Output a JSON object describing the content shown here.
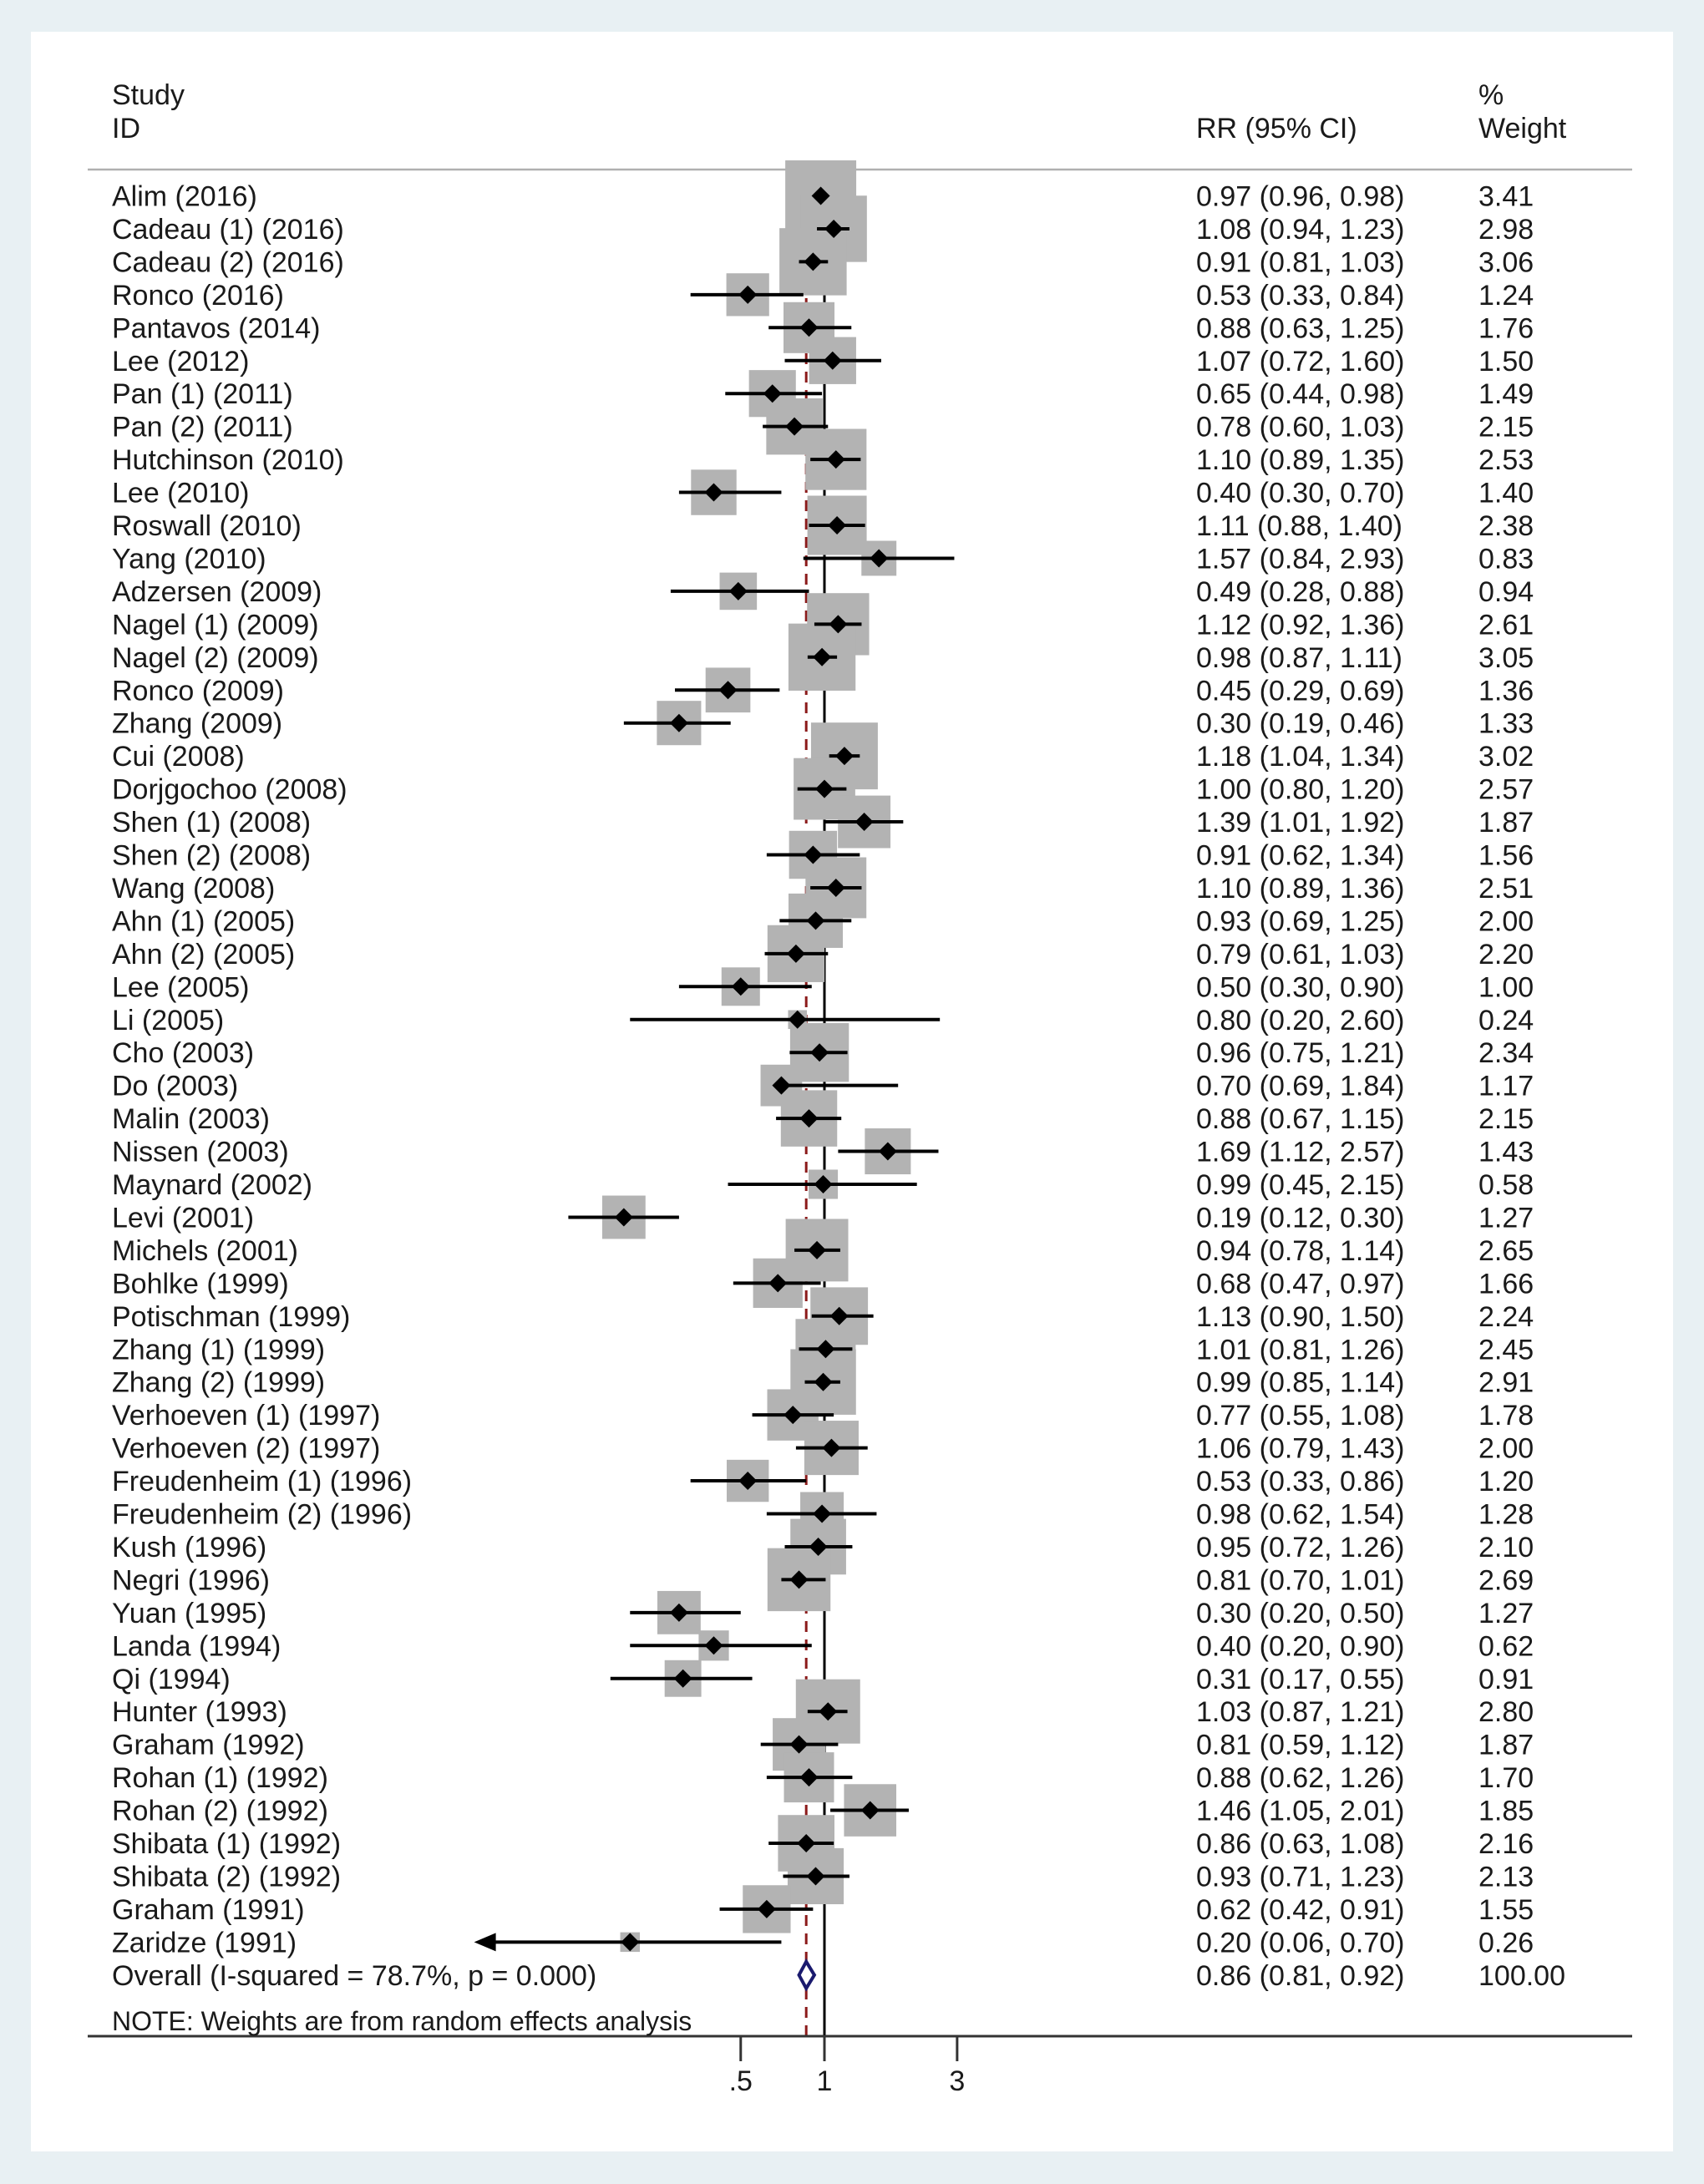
{
  "chart_data": {
    "type": "forest",
    "headers": {
      "study_line1": "Study",
      "study_line2": "ID",
      "effect": "RR (95% CI)",
      "weight_line1": "%",
      "weight_line2": "Weight"
    },
    "x_scale": "log",
    "xlim": [
      0.055,
      3.4
    ],
    "x_ticks": [
      {
        "value": 0.5,
        "label": ".5"
      },
      {
        "value": 1,
        "label": "1"
      },
      {
        "value": 3,
        "label": "3"
      }
    ],
    "null_line": 1,
    "pooled_line": 0.86,
    "studies": [
      {
        "label": "Alim (2016)",
        "rr": 0.97,
        "lo": 0.96,
        "hi": 0.98,
        "ci_text": "0.97 (0.96, 0.98)",
        "weight": 3.41,
        "weight_text": "3.41"
      },
      {
        "label": "Cadeau (1) (2016)",
        "rr": 1.08,
        "lo": 0.94,
        "hi": 1.23,
        "ci_text": "1.08 (0.94, 1.23)",
        "weight": 2.98,
        "weight_text": "2.98"
      },
      {
        "label": "Cadeau (2) (2016)",
        "rr": 0.91,
        "lo": 0.81,
        "hi": 1.03,
        "ci_text": "0.91 (0.81, 1.03)",
        "weight": 3.06,
        "weight_text": "3.06"
      },
      {
        "label": "Ronco (2016)",
        "rr": 0.53,
        "lo": 0.33,
        "hi": 0.84,
        "ci_text": "0.53 (0.33, 0.84)",
        "weight": 1.24,
        "weight_text": "1.24"
      },
      {
        "label": "Pantavos (2014)",
        "rr": 0.88,
        "lo": 0.63,
        "hi": 1.25,
        "ci_text": "0.88 (0.63, 1.25)",
        "weight": 1.76,
        "weight_text": "1.76"
      },
      {
        "label": "Lee (2012)",
        "rr": 1.07,
        "lo": 0.72,
        "hi": 1.6,
        "ci_text": "1.07 (0.72, 1.60)",
        "weight": 1.5,
        "weight_text": "1.50"
      },
      {
        "label": "Pan (1) (2011)",
        "rr": 0.65,
        "lo": 0.44,
        "hi": 0.98,
        "ci_text": "0.65 (0.44, 0.98)",
        "weight": 1.49,
        "weight_text": "1.49"
      },
      {
        "label": "Pan (2) (2011)",
        "rr": 0.78,
        "lo": 0.6,
        "hi": 1.03,
        "ci_text": "0.78 (0.60, 1.03)",
        "weight": 2.15,
        "weight_text": "2.15"
      },
      {
        "label": "Hutchinson (2010)",
        "rr": 1.1,
        "lo": 0.89,
        "hi": 1.35,
        "ci_text": "1.10 (0.89, 1.35)",
        "weight": 2.53,
        "weight_text": "2.53"
      },
      {
        "label": "Lee (2010)",
        "rr": 0.4,
        "lo": 0.3,
        "hi": 0.7,
        "ci_text": "0.40 (0.30, 0.70)",
        "weight": 1.4,
        "weight_text": "1.40"
      },
      {
        "label": "Roswall (2010)",
        "rr": 1.11,
        "lo": 0.88,
        "hi": 1.4,
        "ci_text": "1.11 (0.88, 1.40)",
        "weight": 2.38,
        "weight_text": "2.38"
      },
      {
        "label": "Yang  (2010)",
        "rr": 1.57,
        "lo": 0.84,
        "hi": 2.93,
        "ci_text": "1.57 (0.84, 2.93)",
        "weight": 0.83,
        "weight_text": "0.83"
      },
      {
        "label": "Adzersen (2009)",
        "rr": 0.49,
        "lo": 0.28,
        "hi": 0.88,
        "ci_text": "0.49 (0.28, 0.88)",
        "weight": 0.94,
        "weight_text": "0.94"
      },
      {
        "label": "Nagel (1) (2009)",
        "rr": 1.12,
        "lo": 0.92,
        "hi": 1.36,
        "ci_text": "1.12 (0.92, 1.36)",
        "weight": 2.61,
        "weight_text": "2.61"
      },
      {
        "label": "Nagel (2) (2009)",
        "rr": 0.98,
        "lo": 0.87,
        "hi": 1.11,
        "ci_text": "0.98 (0.87, 1.11)",
        "weight": 3.05,
        "weight_text": "3.05"
      },
      {
        "label": "Ronco (2009)",
        "rr": 0.45,
        "lo": 0.29,
        "hi": 0.69,
        "ci_text": "0.45 (0.29, 0.69)",
        "weight": 1.36,
        "weight_text": "1.36"
      },
      {
        "label": "Zhang (2009)",
        "rr": 0.3,
        "lo": 0.19,
        "hi": 0.46,
        "ci_text": "0.30 (0.19, 0.46)",
        "weight": 1.33,
        "weight_text": "1.33"
      },
      {
        "label": "Cui (2008)",
        "rr": 1.18,
        "lo": 1.04,
        "hi": 1.34,
        "ci_text": "1.18 (1.04, 1.34)",
        "weight": 3.02,
        "weight_text": "3.02"
      },
      {
        "label": "Dorjgochoo (2008)",
        "rr": 1.0,
        "lo": 0.8,
        "hi": 1.2,
        "ci_text": "1.00 (0.80, 1.20)",
        "weight": 2.57,
        "weight_text": "2.57"
      },
      {
        "label": "Shen (1) (2008)",
        "rr": 1.39,
        "lo": 1.01,
        "hi": 1.92,
        "ci_text": "1.39 (1.01, 1.92)",
        "weight": 1.87,
        "weight_text": "1.87"
      },
      {
        "label": "Shen (2) (2008)",
        "rr": 0.91,
        "lo": 0.62,
        "hi": 1.34,
        "ci_text": "0.91 (0.62, 1.34)",
        "weight": 1.56,
        "weight_text": "1.56"
      },
      {
        "label": "Wang (2008)",
        "rr": 1.1,
        "lo": 0.89,
        "hi": 1.36,
        "ci_text": "1.10 (0.89, 1.36)",
        "weight": 2.51,
        "weight_text": "2.51"
      },
      {
        "label": "Ahn (1) (2005)",
        "rr": 0.93,
        "lo": 0.69,
        "hi": 1.25,
        "ci_text": "0.93 (0.69, 1.25)",
        "weight": 2.0,
        "weight_text": "2.00"
      },
      {
        "label": "Ahn (2) (2005)",
        "rr": 0.79,
        "lo": 0.61,
        "hi": 1.03,
        "ci_text": "0.79 (0.61, 1.03)",
        "weight": 2.2,
        "weight_text": "2.20"
      },
      {
        "label": "Lee (2005)",
        "rr": 0.5,
        "lo": 0.3,
        "hi": 0.9,
        "ci_text": "0.50 (0.30, 0.90)",
        "weight": 1.0,
        "weight_text": "1.00"
      },
      {
        "label": "Li (2005)",
        "rr": 0.8,
        "lo": 0.2,
        "hi": 2.6,
        "ci_text": "0.80 (0.20, 2.60)",
        "weight": 0.24,
        "weight_text": "0.24"
      },
      {
        "label": "Cho (2003)",
        "rr": 0.96,
        "lo": 0.75,
        "hi": 1.21,
        "ci_text": "0.96 (0.75, 1.21)",
        "weight": 2.34,
        "weight_text": "2.34"
      },
      {
        "label": "Do (2003)",
        "rr": 0.7,
        "lo": 0.69,
        "hi": 1.84,
        "ci_text": "0.70 (0.69, 1.84)",
        "weight": 1.17,
        "weight_text": "1.17"
      },
      {
        "label": "Malin (2003)",
        "rr": 0.88,
        "lo": 0.67,
        "hi": 1.15,
        "ci_text": "0.88 (0.67, 1.15)",
        "weight": 2.15,
        "weight_text": "2.15"
      },
      {
        "label": "Nissen (2003)",
        "rr": 1.69,
        "lo": 1.12,
        "hi": 2.57,
        "ci_text": "1.69 (1.12, 2.57)",
        "weight": 1.43,
        "weight_text": "1.43"
      },
      {
        "label": "Maynard (2002)",
        "rr": 0.99,
        "lo": 0.45,
        "hi": 2.15,
        "ci_text": "0.99 (0.45, 2.15)",
        "weight": 0.58,
        "weight_text": "0.58"
      },
      {
        "label": "Levi (2001)",
        "rr": 0.19,
        "lo": 0.12,
        "hi": 0.3,
        "ci_text": "0.19 (0.12, 0.30)",
        "weight": 1.27,
        "weight_text": "1.27"
      },
      {
        "label": "Michels (2001)",
        "rr": 0.94,
        "lo": 0.78,
        "hi": 1.14,
        "ci_text": "0.94 (0.78, 1.14)",
        "weight": 2.65,
        "weight_text": "2.65"
      },
      {
        "label": "Bohlke (1999)",
        "rr": 0.68,
        "lo": 0.47,
        "hi": 0.97,
        "ci_text": "0.68 (0.47, 0.97)",
        "weight": 1.66,
        "weight_text": "1.66"
      },
      {
        "label": "Potischman (1999)",
        "rr": 1.13,
        "lo": 0.9,
        "hi": 1.5,
        "ci_text": "1.13 (0.90, 1.50)",
        "weight": 2.24,
        "weight_text": "2.24"
      },
      {
        "label": "Zhang (1) (1999)",
        "rr": 1.01,
        "lo": 0.81,
        "hi": 1.26,
        "ci_text": "1.01 (0.81, 1.26)",
        "weight": 2.45,
        "weight_text": "2.45"
      },
      {
        "label": "Zhang (2) (1999)",
        "rr": 0.99,
        "lo": 0.85,
        "hi": 1.14,
        "ci_text": "0.99 (0.85, 1.14)",
        "weight": 2.91,
        "weight_text": "2.91"
      },
      {
        "label": "Verhoeven (1) (1997)",
        "rr": 0.77,
        "lo": 0.55,
        "hi": 1.08,
        "ci_text": "0.77 (0.55, 1.08)",
        "weight": 1.78,
        "weight_text": "1.78"
      },
      {
        "label": "Verhoeven (2) (1997)",
        "rr": 1.06,
        "lo": 0.79,
        "hi": 1.43,
        "ci_text": "1.06 (0.79, 1.43)",
        "weight": 2.0,
        "weight_text": "2.00"
      },
      {
        "label": "Freudenheim (1) (1996)",
        "rr": 0.53,
        "lo": 0.33,
        "hi": 0.86,
        "ci_text": "0.53 (0.33, 0.86)",
        "weight": 1.2,
        "weight_text": "1.20"
      },
      {
        "label": "Freudenheim (2) (1996)",
        "rr": 0.98,
        "lo": 0.62,
        "hi": 1.54,
        "ci_text": "0.98 (0.62, 1.54)",
        "weight": 1.28,
        "weight_text": "1.28"
      },
      {
        "label": "Kush (1996)",
        "rr": 0.95,
        "lo": 0.72,
        "hi": 1.26,
        "ci_text": "0.95 (0.72, 1.26)",
        "weight": 2.1,
        "weight_text": "2.10"
      },
      {
        "label": "Negri (1996)",
        "rr": 0.81,
        "lo": 0.7,
        "hi": 1.01,
        "ci_text": "0.81 (0.70, 1.01)",
        "weight": 2.69,
        "weight_text": "2.69"
      },
      {
        "label": "Yuan (1995)",
        "rr": 0.3,
        "lo": 0.2,
        "hi": 0.5,
        "ci_text": "0.30 (0.20, 0.50)",
        "weight": 1.27,
        "weight_text": "1.27"
      },
      {
        "label": "Landa (1994)",
        "rr": 0.4,
        "lo": 0.2,
        "hi": 0.9,
        "ci_text": "0.40 (0.20, 0.90)",
        "weight": 0.62,
        "weight_text": "0.62"
      },
      {
        "label": "Qi (1994)",
        "rr": 0.31,
        "lo": 0.17,
        "hi": 0.55,
        "ci_text": "0.31 (0.17, 0.55)",
        "weight": 0.91,
        "weight_text": "0.91"
      },
      {
        "label": "Hunter (1993)",
        "rr": 1.03,
        "lo": 0.87,
        "hi": 1.21,
        "ci_text": "1.03 (0.87, 1.21)",
        "weight": 2.8,
        "weight_text": "2.80"
      },
      {
        "label": "Graham (1992)",
        "rr": 0.81,
        "lo": 0.59,
        "hi": 1.12,
        "ci_text": "0.81 (0.59, 1.12)",
        "weight": 1.87,
        "weight_text": "1.87"
      },
      {
        "label": "Rohan (1) (1992)",
        "rr": 0.88,
        "lo": 0.62,
        "hi": 1.26,
        "ci_text": "0.88 (0.62, 1.26)",
        "weight": 1.7,
        "weight_text": "1.70"
      },
      {
        "label": "Rohan (2) (1992)",
        "rr": 1.46,
        "lo": 1.05,
        "hi": 2.01,
        "ci_text": "1.46 (1.05, 2.01)",
        "weight": 1.85,
        "weight_text": "1.85"
      },
      {
        "label": "Shibata (1) (1992)",
        "rr": 0.86,
        "lo": 0.63,
        "hi": 1.08,
        "ci_text": "0.86 (0.63, 1.08)",
        "weight": 2.16,
        "weight_text": "2.16"
      },
      {
        "label": "Shibata (2) (1992)",
        "rr": 0.93,
        "lo": 0.71,
        "hi": 1.23,
        "ci_text": "0.93 (0.71, 1.23)",
        "weight": 2.13,
        "weight_text": "2.13"
      },
      {
        "label": "Graham  (1991)",
        "rr": 0.62,
        "lo": 0.42,
        "hi": 0.91,
        "ci_text": "0.62 (0.42, 0.91)",
        "weight": 1.55,
        "weight_text": "1.55"
      },
      {
        "label": "Zaridze (1991)",
        "rr": 0.2,
        "lo": 0.06,
        "hi": 0.7,
        "ci_text": "0.20 (0.06, 0.70)",
        "weight": 0.26,
        "weight_text": "0.26",
        "lo_truncated": true
      }
    ],
    "overall": {
      "label": "Overall  (I-squared = 78.7%, p = 0.000)",
      "rr": 0.86,
      "lo": 0.81,
      "hi": 0.92,
      "ci_text": "0.86 (0.81, 0.92)",
      "weight_text": "100.00"
    },
    "note": "NOTE: Weights are from random effects analysis",
    "colors": {
      "background": "#e8f0f3",
      "panel": "#ffffff",
      "weight_box": "#b3b3b3",
      "marker": "#000000",
      "pooled_line": "#8b1a1a",
      "overall_diamond": "#1a1a6e"
    }
  }
}
